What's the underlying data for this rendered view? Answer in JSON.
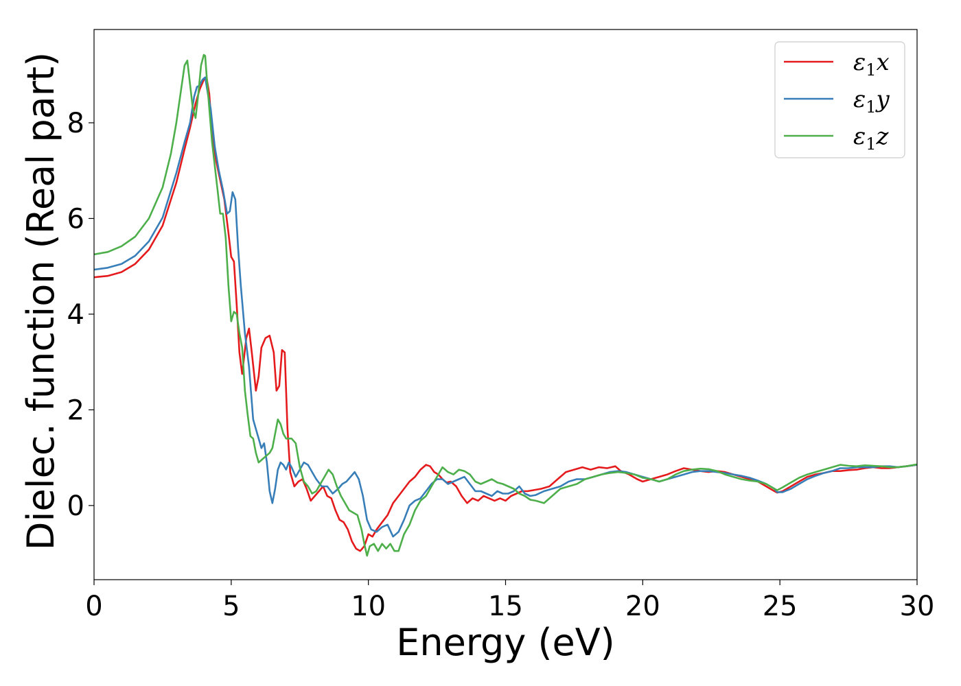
{
  "chart_data": {
    "type": "line",
    "xlabel": "Energy (eV)",
    "ylabel": "Dielec. function (Real part)",
    "xlim": [
      0,
      30
    ],
    "ylim": [
      -1.55,
      9.95
    ],
    "xticks": [
      0,
      5,
      10,
      15,
      20,
      25,
      30
    ],
    "yticks": [
      0,
      2,
      4,
      6,
      8
    ],
    "legend_position": "top-right",
    "grid": false,
    "series": [
      {
        "name": "ε1x",
        "legend": {
          "main": "ε",
          "sub": "1",
          "var": "x"
        },
        "color": "#e41a1c",
        "x": [
          0,
          0.5,
          1.0,
          1.5,
          2.0,
          2.5,
          3.0,
          3.3,
          3.5,
          3.7,
          3.85,
          4.0,
          4.1,
          4.2,
          4.3,
          4.45,
          4.6,
          4.75,
          4.9,
          5.0,
          5.1,
          5.2,
          5.3,
          5.4,
          5.55,
          5.65,
          5.75,
          5.9,
          6.0,
          6.1,
          6.25,
          6.4,
          6.55,
          6.65,
          6.75,
          6.85,
          6.95,
          7.05,
          7.15,
          7.3,
          7.45,
          7.6,
          7.75,
          7.9,
          8.05,
          8.2,
          8.35,
          8.5,
          8.65,
          8.8,
          8.95,
          9.1,
          9.25,
          9.4,
          9.55,
          9.7,
          9.85,
          10.0,
          10.15,
          10.3,
          10.5,
          10.7,
          10.9,
          11.1,
          11.3,
          11.5,
          11.7,
          11.9,
          12.1,
          12.25,
          12.4,
          12.55,
          12.7,
          12.85,
          13.0,
          13.2,
          13.4,
          13.6,
          13.8,
          14.0,
          14.2,
          14.4,
          14.6,
          14.8,
          15.0,
          15.2,
          15.4,
          15.6,
          15.8,
          16.0,
          16.3,
          16.6,
          16.9,
          17.2,
          17.5,
          17.8,
          18.1,
          18.4,
          18.7,
          19.0,
          19.2,
          19.5,
          19.8,
          20.0,
          20.3,
          20.6,
          20.9,
          21.2,
          21.5,
          21.8,
          22.1,
          22.4,
          22.7,
          23.0,
          23.3,
          23.6,
          23.9,
          24.2,
          24.5,
          24.8,
          24.9,
          25.1,
          25.4,
          25.7,
          26.0,
          26.3,
          26.6,
          26.9,
          27.2,
          27.5,
          27.8,
          28.1,
          28.4,
          28.7,
          29.0,
          29.3,
          29.6,
          30.0
        ],
        "y": [
          4.77,
          4.8,
          4.88,
          5.05,
          5.35,
          5.85,
          6.75,
          7.45,
          7.9,
          8.4,
          8.7,
          8.9,
          8.95,
          8.6,
          7.8,
          7.2,
          6.8,
          6.4,
          5.7,
          5.2,
          5.1,
          4.2,
          3.2,
          2.75,
          3.5,
          3.7,
          3.2,
          2.4,
          2.7,
          3.3,
          3.5,
          3.55,
          3.2,
          2.4,
          2.5,
          3.25,
          3.2,
          1.6,
          0.7,
          0.4,
          0.5,
          0.55,
          0.35,
          0.1,
          0.2,
          0.3,
          0.4,
          0.2,
          0.15,
          -0.1,
          -0.3,
          -0.35,
          -0.5,
          -0.75,
          -0.9,
          -0.95,
          -0.85,
          -0.6,
          -0.65,
          -0.5,
          -0.35,
          -0.2,
          0.05,
          0.2,
          0.35,
          0.5,
          0.6,
          0.75,
          0.85,
          0.82,
          0.7,
          0.65,
          0.55,
          0.48,
          0.5,
          0.4,
          0.2,
          0.05,
          0.15,
          0.1,
          0.2,
          0.15,
          0.1,
          0.15,
          0.1,
          0.2,
          0.25,
          0.3,
          0.3,
          0.32,
          0.35,
          0.4,
          0.55,
          0.7,
          0.75,
          0.8,
          0.75,
          0.8,
          0.78,
          0.82,
          0.72,
          0.65,
          0.55,
          0.5,
          0.55,
          0.6,
          0.65,
          0.72,
          0.78,
          0.75,
          0.72,
          0.7,
          0.72,
          0.7,
          0.65,
          0.6,
          0.55,
          0.5,
          0.4,
          0.3,
          0.27,
          0.3,
          0.4,
          0.5,
          0.6,
          0.65,
          0.68,
          0.72,
          0.72,
          0.74,
          0.75,
          0.78,
          0.8,
          0.78,
          0.78,
          0.8,
          0.82,
          0.85
        ]
      },
      {
        "name": "ε1y",
        "legend": {
          "main": "ε",
          "sub": "1",
          "var": "y"
        },
        "color": "#377eb8",
        "x": [
          0,
          0.5,
          1.0,
          1.5,
          2.0,
          2.5,
          3.0,
          3.3,
          3.5,
          3.65,
          3.75,
          3.85,
          3.95,
          4.05,
          4.15,
          4.25,
          4.4,
          4.55,
          4.7,
          4.85,
          4.95,
          5.05,
          5.15,
          5.25,
          5.35,
          5.5,
          5.65,
          5.8,
          5.95,
          6.1,
          6.2,
          6.3,
          6.4,
          6.5,
          6.6,
          6.7,
          6.8,
          6.9,
          7.0,
          7.1,
          7.2,
          7.35,
          7.5,
          7.65,
          7.8,
          7.95,
          8.1,
          8.3,
          8.5,
          8.7,
          8.9,
          9.05,
          9.2,
          9.35,
          9.5,
          9.65,
          9.8,
          9.95,
          10.1,
          10.3,
          10.5,
          10.7,
          10.9,
          11.1,
          11.3,
          11.5,
          11.7,
          11.9,
          12.1,
          12.3,
          12.5,
          12.7,
          12.9,
          13.1,
          13.3,
          13.5,
          13.7,
          13.9,
          14.1,
          14.3,
          14.5,
          14.7,
          14.9,
          15.1,
          15.3,
          15.5,
          15.7,
          15.9,
          16.1,
          16.4,
          16.7,
          17.0,
          17.3,
          17.6,
          17.9,
          18.2,
          18.5,
          18.8,
          19.1,
          19.4,
          19.7,
          20.0,
          20.3,
          20.6,
          20.9,
          21.2,
          21.5,
          21.8,
          22.1,
          22.4,
          22.7,
          23.0,
          23.3,
          23.6,
          23.9,
          24.2,
          24.5,
          24.8,
          24.9,
          25.1,
          25.4,
          25.7,
          26.0,
          26.3,
          26.6,
          26.9,
          27.2,
          27.5,
          27.8,
          28.1,
          28.4,
          28.7,
          29.0,
          29.3,
          29.6,
          30.0
        ],
        "y": [
          4.93,
          4.97,
          5.05,
          5.22,
          5.52,
          6.02,
          6.95,
          7.6,
          8.0,
          8.55,
          8.75,
          8.78,
          8.9,
          8.95,
          8.6,
          8.3,
          7.5,
          7.0,
          6.6,
          6.1,
          6.15,
          6.55,
          6.4,
          5.4,
          4.6,
          3.6,
          2.9,
          1.8,
          1.5,
          1.2,
          1.3,
          0.9,
          0.3,
          0.05,
          0.35,
          0.75,
          0.9,
          0.85,
          0.75,
          0.9,
          0.8,
          0.6,
          0.75,
          0.9,
          0.85,
          0.7,
          0.55,
          0.4,
          0.4,
          0.25,
          0.35,
          0.45,
          0.5,
          0.6,
          0.7,
          0.55,
          0.2,
          -0.3,
          -0.5,
          -0.55,
          -0.45,
          -0.4,
          -0.65,
          -0.55,
          -0.3,
          0.0,
          0.1,
          0.15,
          0.3,
          0.45,
          0.55,
          0.55,
          0.45,
          0.5,
          0.55,
          0.6,
          0.45,
          0.3,
          0.3,
          0.25,
          0.2,
          0.3,
          0.25,
          0.25,
          0.3,
          0.4,
          0.25,
          0.2,
          0.22,
          0.3,
          0.35,
          0.4,
          0.5,
          0.55,
          0.55,
          0.6,
          0.65,
          0.7,
          0.72,
          0.7,
          0.65,
          0.6,
          0.55,
          0.5,
          0.55,
          0.6,
          0.65,
          0.7,
          0.72,
          0.72,
          0.7,
          0.68,
          0.65,
          0.62,
          0.58,
          0.52,
          0.45,
          0.35,
          0.28,
          0.28,
          0.35,
          0.45,
          0.55,
          0.62,
          0.68,
          0.72,
          0.78,
          0.78,
          0.8,
          0.8,
          0.8,
          0.82,
          0.82,
          0.8,
          0.82,
          0.85
        ]
      },
      {
        "name": "ε1z",
        "legend": {
          "main": "ε",
          "sub": "1",
          "var": "z"
        },
        "color": "#4daf4a",
        "x": [
          0,
          0.5,
          1.0,
          1.5,
          2.0,
          2.5,
          2.8,
          3.0,
          3.15,
          3.3,
          3.4,
          3.5,
          3.6,
          3.7,
          3.8,
          3.9,
          4.0,
          4.05,
          4.1,
          4.2,
          4.3,
          4.4,
          4.5,
          4.6,
          4.7,
          4.8,
          4.9,
          5.0,
          5.1,
          5.2,
          5.3,
          5.4,
          5.5,
          5.6,
          5.7,
          5.8,
          5.9,
          6.0,
          6.1,
          6.2,
          6.3,
          6.4,
          6.5,
          6.6,
          6.7,
          6.8,
          6.9,
          7.0,
          7.1,
          7.2,
          7.35,
          7.5,
          7.65,
          7.8,
          7.95,
          8.1,
          8.25,
          8.4,
          8.55,
          8.7,
          8.85,
          9.0,
          9.15,
          9.3,
          9.45,
          9.6,
          9.75,
          9.85,
          9.95,
          10.05,
          10.2,
          10.35,
          10.5,
          10.65,
          10.8,
          10.95,
          11.1,
          11.3,
          11.5,
          11.7,
          11.9,
          12.1,
          12.3,
          12.5,
          12.7,
          12.9,
          13.1,
          13.3,
          13.5,
          13.7,
          13.9,
          14.1,
          14.3,
          14.5,
          14.7,
          14.9,
          15.1,
          15.3,
          15.5,
          15.7,
          15.9,
          16.1,
          16.4,
          16.7,
          17.0,
          17.3,
          17.6,
          17.9,
          18.2,
          18.5,
          18.8,
          19.1,
          19.4,
          19.7,
          20.0,
          20.3,
          20.6,
          20.9,
          21.2,
          21.5,
          21.8,
          22.1,
          22.4,
          22.7,
          23.0,
          23.3,
          23.6,
          23.9,
          24.2,
          24.5,
          24.8,
          24.9,
          25.1,
          25.4,
          25.7,
          26.0,
          26.3,
          26.6,
          26.9,
          27.2,
          27.5,
          27.8,
          28.1,
          28.4,
          28.7,
          29.0,
          29.3,
          29.6,
          30.0
        ],
        "y": [
          5.25,
          5.3,
          5.42,
          5.62,
          6.0,
          6.65,
          7.35,
          8.0,
          8.6,
          9.2,
          9.3,
          8.8,
          8.3,
          8.1,
          8.6,
          9.2,
          9.42,
          9.4,
          9.0,
          8.3,
          7.6,
          7.1,
          6.6,
          6.1,
          6.1,
          5.6,
          4.6,
          3.85,
          4.05,
          4.0,
          3.6,
          3.3,
          2.4,
          1.9,
          1.45,
          1.4,
          1.1,
          0.9,
          0.95,
          1.0,
          1.05,
          1.1,
          1.2,
          1.5,
          1.8,
          1.7,
          1.5,
          1.4,
          1.4,
          1.4,
          1.3,
          0.8,
          0.5,
          0.4,
          0.25,
          0.3,
          0.45,
          0.6,
          0.75,
          0.65,
          0.4,
          0.2,
          0.05,
          -0.1,
          -0.15,
          -0.2,
          -0.5,
          -0.8,
          -1.05,
          -0.85,
          -0.8,
          -0.95,
          -0.8,
          -0.9,
          -0.8,
          -0.95,
          -0.95,
          -0.6,
          -0.4,
          -0.1,
          0.1,
          0.2,
          0.4,
          0.6,
          0.8,
          0.7,
          0.65,
          0.75,
          0.72,
          0.65,
          0.5,
          0.45,
          0.5,
          0.55,
          0.48,
          0.45,
          0.4,
          0.35,
          0.25,
          0.2,
          0.12,
          0.1,
          0.05,
          0.2,
          0.35,
          0.4,
          0.45,
          0.55,
          0.6,
          0.65,
          0.68,
          0.7,
          0.68,
          0.65,
          0.58,
          0.55,
          0.5,
          0.55,
          0.65,
          0.72,
          0.75,
          0.77,
          0.76,
          0.72,
          0.65,
          0.6,
          0.55,
          0.52,
          0.5,
          0.45,
          0.35,
          0.32,
          0.38,
          0.48,
          0.58,
          0.65,
          0.7,
          0.75,
          0.8,
          0.85,
          0.83,
          0.82,
          0.84,
          0.83,
          0.82,
          0.8,
          0.8,
          0.82,
          0.86
        ]
      }
    ]
  }
}
